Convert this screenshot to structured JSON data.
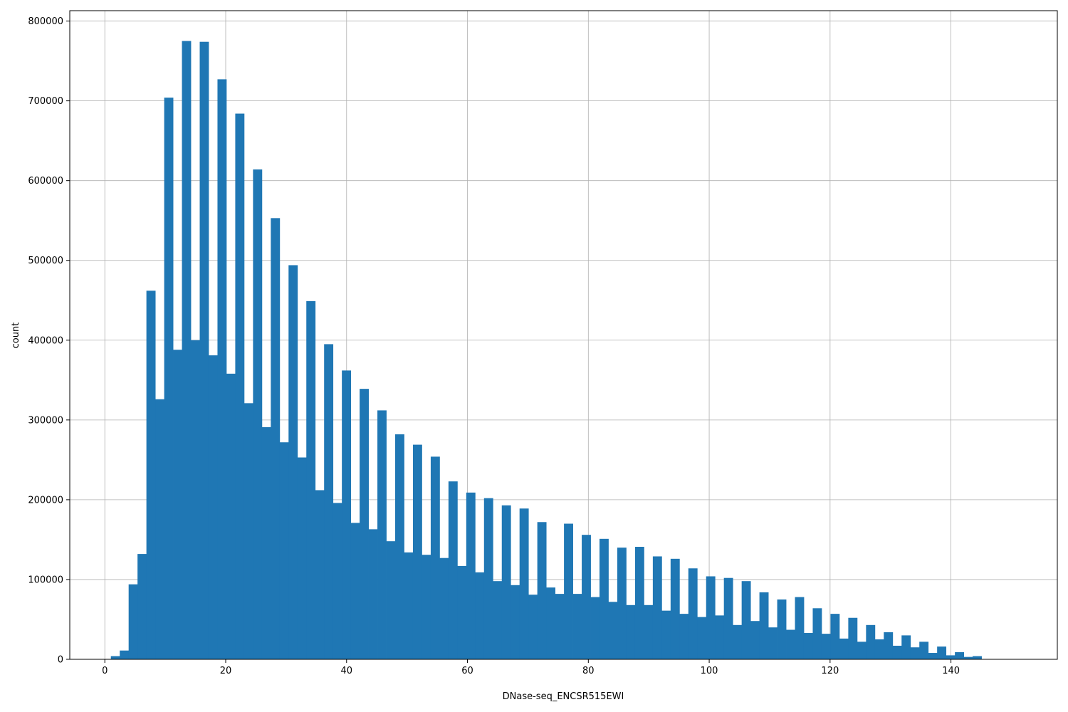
{
  "chart_data": {
    "type": "bar",
    "xlabel": "DNase-seq_ENCSR515EWI",
    "ylabel": "count",
    "xlim": [
      -5.8,
      157.6
    ],
    "ylim": [
      0,
      813000
    ],
    "xticks": [
      0,
      20,
      40,
      60,
      80,
      100,
      120,
      140
    ],
    "yticks": [
      0,
      100000,
      200000,
      300000,
      400000,
      500000,
      600000,
      700000,
      800000
    ],
    "grid": true,
    "color": "#1f77b4",
    "bin_start": 1.0,
    "bin_width": 1.47,
    "values": [
      4000,
      11000,
      94000,
      132000,
      462000,
      326000,
      704000,
      388000,
      775000,
      400000,
      774000,
      381000,
      727000,
      358000,
      684000,
      321000,
      614000,
      291000,
      553000,
      272000,
      494000,
      253000,
      449000,
      212000,
      395000,
      196000,
      362000,
      171000,
      339000,
      163000,
      312000,
      148000,
      282000,
      134000,
      269000,
      131000,
      254000,
      127000,
      223000,
      117000,
      209000,
      109000,
      202000,
      98000,
      193000,
      93000,
      189000,
      81000,
      172000,
      90000,
      82000,
      170000,
      82000,
      156000,
      78000,
      151000,
      72000,
      140000,
      68000,
      141000,
      68000,
      129000,
      61000,
      126000,
      57000,
      114000,
      53000,
      104000,
      55000,
      102000,
      43000,
      98000,
      48000,
      84000,
      40000,
      75000,
      37000,
      78000,
      33000,
      64000,
      32000,
      57000,
      26000,
      52000,
      22000,
      43000,
      25000,
      34000,
      17000,
      30000,
      15000,
      22000,
      8000,
      16000,
      5000,
      9000,
      3000,
      4000
    ]
  }
}
